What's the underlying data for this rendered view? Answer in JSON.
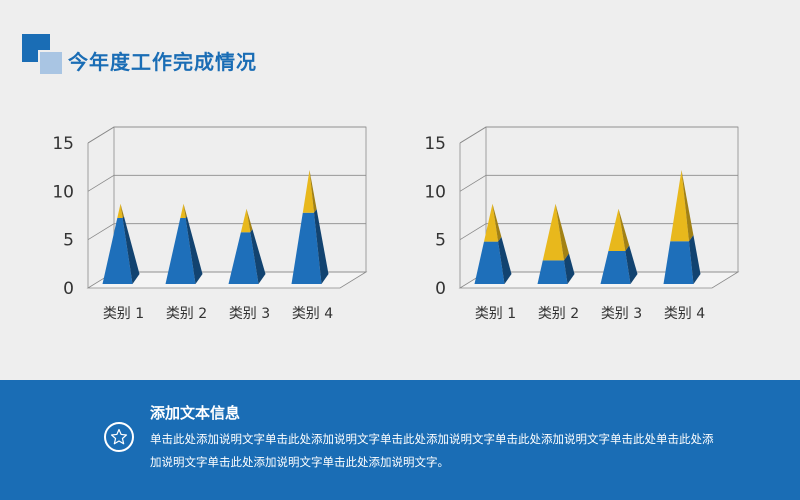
{
  "header": {
    "title": "今年度工作完成情况"
  },
  "chart_data": [
    {
      "type": "bar",
      "categories": [
        "类别 1",
        "类别 2",
        "类别 3",
        "类别 4"
      ],
      "series": [
        {
          "values": [
            7.0,
            7.0,
            5.5,
            7.5
          ]
        },
        {
          "values": [
            1.5,
            1.5,
            2.5,
            4.5
          ]
        }
      ],
      "yticks": [
        "0",
        "5",
        "10",
        "15"
      ],
      "ylim": [
        0,
        15
      ],
      "stacked": true,
      "colors": [
        "#1e6fba",
        "#e8b81c"
      ]
    },
    {
      "type": "bar",
      "categories": [
        "类别 1",
        "类别 2",
        "类别 3",
        "类别 4"
      ],
      "series": [
        {
          "values": [
            4.5,
            2.5,
            3.5,
            4.5
          ]
        },
        {
          "values": [
            4.0,
            6.0,
            4.5,
            7.5
          ]
        }
      ],
      "yticks": [
        "0",
        "5",
        "10",
        "15"
      ],
      "ylim": [
        0,
        15
      ],
      "stacked": true,
      "colors": [
        "#1e6fba",
        "#e8b81c"
      ]
    }
  ],
  "footer": {
    "title": "添加文本信息",
    "body": "单击此处添加说明文字单击此处添加说明文字单击此处添加说明文字单击此处添加说明文字单击此处单击此处添加说明文字单击此处添加说明文字单击此处添加说明文字。",
    "icon": "star-icon"
  }
}
